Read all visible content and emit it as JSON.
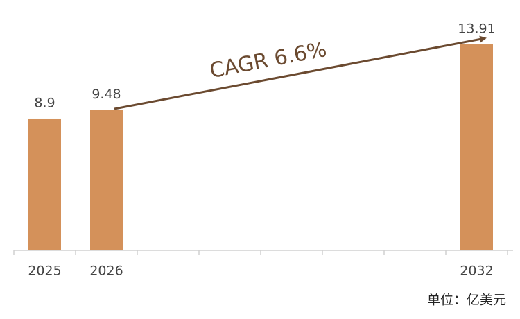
{
  "chart_data": {
    "type": "bar",
    "categories": [
      "2025",
      "2026",
      null,
      null,
      null,
      null,
      null,
      "2032"
    ],
    "values": [
      8.9,
      9.48,
      null,
      null,
      null,
      null,
      null,
      13.91
    ],
    "color": "#d4915a",
    "annotation": "CAGR 6.6%",
    "note": "单位：亿美元"
  }
}
